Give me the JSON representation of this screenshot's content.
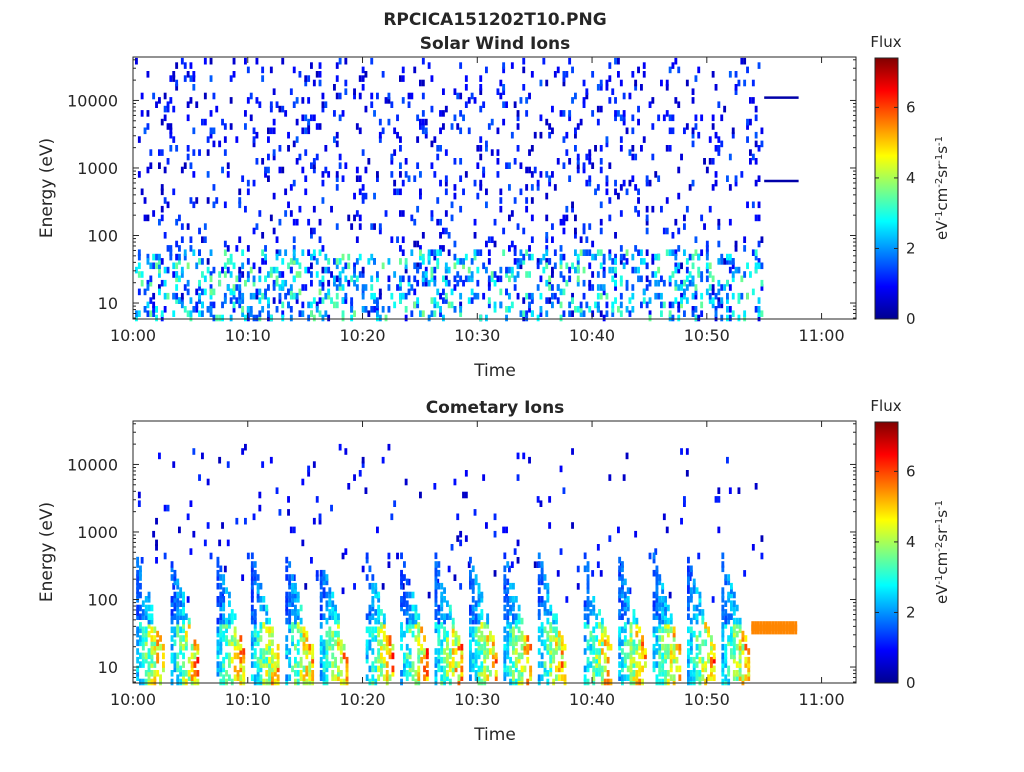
{
  "figure": {
    "title": "RPCICA151202T10.PNG"
  },
  "chart_data": [
    {
      "type": "heatmap",
      "title": "Solar Wind Ions",
      "xlabel": "Time",
      "ylabel": "Energy (eV)",
      "y_scale": "log",
      "xlim": [
        "10:00",
        "11:03"
      ],
      "ylim": [
        5.8,
        44000
      ],
      "x_tick_labels": [
        "10:00",
        "10:10",
        "10:20",
        "10:30",
        "10:40",
        "10:50",
        "11:00"
      ],
      "y_tick_labels": [
        "10",
        "100",
        "1000",
        "10000"
      ],
      "colorbar": {
        "title": "Flux",
        "label": "eV-1cm-2sr-1s-1",
        "range": [
          0,
          7.4
        ],
        "tick_labels": [
          "0",
          "2",
          "4",
          "6"
        ],
        "colormap": "jet"
      },
      "features": [
        {
          "description": "scattered low-flux counts",
          "time_range": [
            "10:00",
            "10:55"
          ],
          "energy_range": [
            6,
            40000
          ],
          "flux": 1
        },
        {
          "description": "low-energy band",
          "time_range": [
            "10:00",
            "10:55"
          ],
          "energy_range": [
            6,
            60
          ],
          "flux": 2.5
        },
        {
          "description": "horizontal line",
          "time_range": [
            "10:55",
            "10:58"
          ],
          "energy": 11000,
          "flux": 0.3
        },
        {
          "description": "horizontal line",
          "time_range": [
            "10:55",
            "10:58"
          ],
          "energy": 640,
          "flux": 0.3
        }
      ]
    },
    {
      "type": "heatmap",
      "title": "Cometary Ions",
      "xlabel": "Time",
      "ylabel": "Energy (eV)",
      "y_scale": "log",
      "xlim": [
        "10:00",
        "11:03"
      ],
      "ylim": [
        5.8,
        44000
      ],
      "x_tick_labels": [
        "10:00",
        "10:10",
        "10:20",
        "10:30",
        "10:40",
        "10:50",
        "11:00"
      ],
      "y_tick_labels": [
        "10",
        "100",
        "1000",
        "10000"
      ],
      "colorbar": {
        "title": "Flux",
        "label": "eV-1cm-2sr-1s-1",
        "range": [
          0,
          7.4
        ],
        "tick_labels": [
          "0",
          "2",
          "4",
          "6"
        ],
        "colormap": "jet"
      },
      "bursts_peak_times": [
        "10:02",
        "10:05",
        "10:09",
        "10:12",
        "10:15",
        "10:18",
        "10:22",
        "10:25",
        "10:28",
        "10:31",
        "10:34",
        "10:37",
        "10:41",
        "10:44",
        "10:47",
        "10:50",
        "10:53"
      ],
      "features": [
        {
          "description": "repeated dispersion bursts",
          "energy_range": [
            6,
            500
          ],
          "peak_flux": 6.5
        },
        {
          "description": "constant band",
          "time_range": [
            "10:54",
            "10:58"
          ],
          "energy_range": [
            34,
            44
          ],
          "flux": 5.5
        }
      ]
    }
  ]
}
